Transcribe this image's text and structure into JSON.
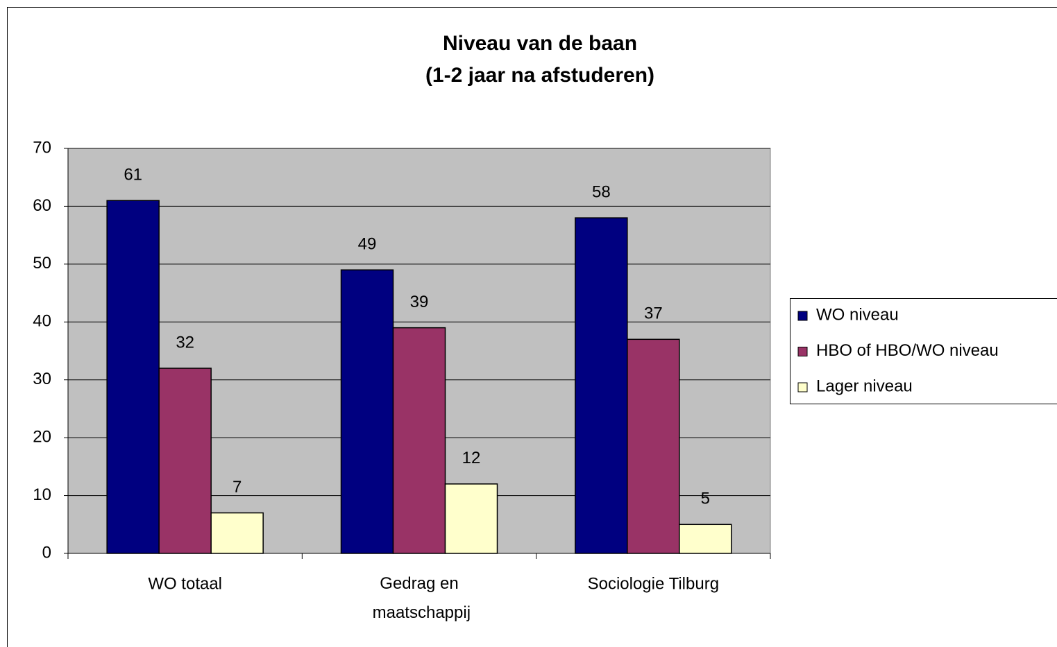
{
  "chart_data": {
    "type": "bar",
    "title": "Niveau van de baan",
    "subtitle": "(1-2 jaar na afstuderen)",
    "categories": [
      "WO totaal",
      "Gedrag en maatschappij",
      "Sociologie Tilburg"
    ],
    "series": [
      {
        "name": "WO niveau",
        "color": "#000080",
        "values": [
          61,
          49,
          58
        ]
      },
      {
        "name": "HBO of HBO/WO niveau",
        "color": "#993366",
        "values": [
          32,
          39,
          37
        ]
      },
      {
        "name": "Lager niveau",
        "color": "#ffffcc",
        "values": [
          7,
          12,
          5
        ]
      }
    ],
    "ylim": [
      0,
      70
    ],
    "yticks": [
      0,
      10,
      20,
      30,
      40,
      50,
      60,
      70
    ],
    "grid": true,
    "legend": "right",
    "plot_background": "#c0c0c0"
  }
}
